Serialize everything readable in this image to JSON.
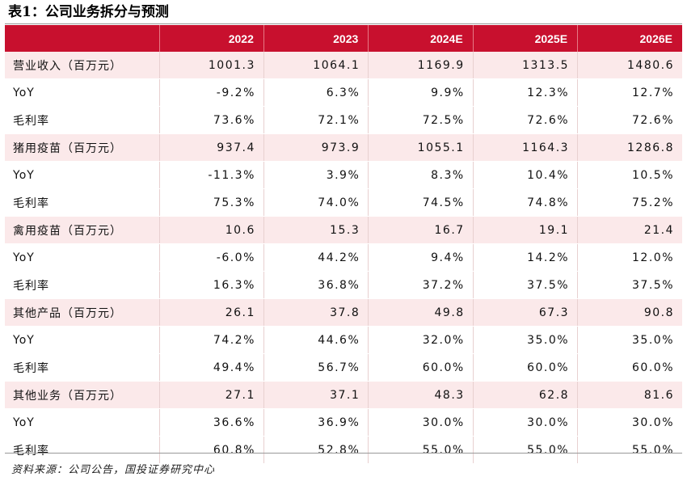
{
  "title": "表1：公司业务拆分与预测",
  "header": {
    "corner": "",
    "years": [
      "2022",
      "2023",
      "2024E",
      "2025E",
      "2026E"
    ]
  },
  "rows": [
    {
      "label": "营业收入（百万元）",
      "values": [
        "1001.3",
        "1064.1",
        "1169.9",
        "1313.5",
        "1480.6"
      ],
      "highlight": true
    },
    {
      "label": "YoY",
      "values": [
        "-9.2%",
        "6.3%",
        "9.9%",
        "12.3%",
        "12.7%"
      ],
      "highlight": false
    },
    {
      "label": "毛利率",
      "values": [
        "73.6%",
        "72.1%",
        "72.5%",
        "72.6%",
        "72.6%"
      ],
      "highlight": false
    },
    {
      "label": "猪用疫苗（百万元）",
      "values": [
        "937.4",
        "973.9",
        "1055.1",
        "1164.3",
        "1286.8"
      ],
      "highlight": true
    },
    {
      "label": "YoY",
      "values": [
        "-11.3%",
        "3.9%",
        "8.3%",
        "10.4%",
        "10.5%"
      ],
      "highlight": false
    },
    {
      "label": "毛利率",
      "values": [
        "75.3%",
        "74.0%",
        "74.5%",
        "74.8%",
        "75.2%"
      ],
      "highlight": false
    },
    {
      "label": "禽用疫苗（百万元）",
      "values": [
        "10.6",
        "15.3",
        "16.7",
        "19.1",
        "21.4"
      ],
      "highlight": true
    },
    {
      "label": "YoY",
      "values": [
        "-6.0%",
        "44.2%",
        "9.4%",
        "14.2%",
        "12.0%"
      ],
      "highlight": false
    },
    {
      "label": "毛利率",
      "values": [
        "16.3%",
        "36.8%",
        "37.2%",
        "37.5%",
        "37.5%"
      ],
      "highlight": false
    },
    {
      "label": "其他产品（百万元）",
      "values": [
        "26.1",
        "37.8",
        "49.8",
        "67.3",
        "90.8"
      ],
      "highlight": true
    },
    {
      "label": "YoY",
      "values": [
        "74.2%",
        "44.6%",
        "32.0%",
        "35.0%",
        "35.0%"
      ],
      "highlight": false
    },
    {
      "label": "毛利率",
      "values": [
        "49.4%",
        "56.7%",
        "60.0%",
        "60.0%",
        "60.0%"
      ],
      "highlight": false
    },
    {
      "label": "其他业务（百万元）",
      "values": [
        "27.1",
        "37.1",
        "48.3",
        "62.8",
        "81.6"
      ],
      "highlight": true
    },
    {
      "label": "YoY",
      "values": [
        "36.6%",
        "36.9%",
        "30.0%",
        "30.0%",
        "30.0%"
      ],
      "highlight": false
    },
    {
      "label": "毛利率",
      "values": [
        "60.8%",
        "52.8%",
        "55.0%",
        "55.0%",
        "55.0%"
      ],
      "highlight": false
    }
  ],
  "source": "资料来源：公司公告，国投证券研究中心",
  "colors": {
    "header_bg": "#c8102e",
    "highlight_bg": "#fbe9ea"
  }
}
